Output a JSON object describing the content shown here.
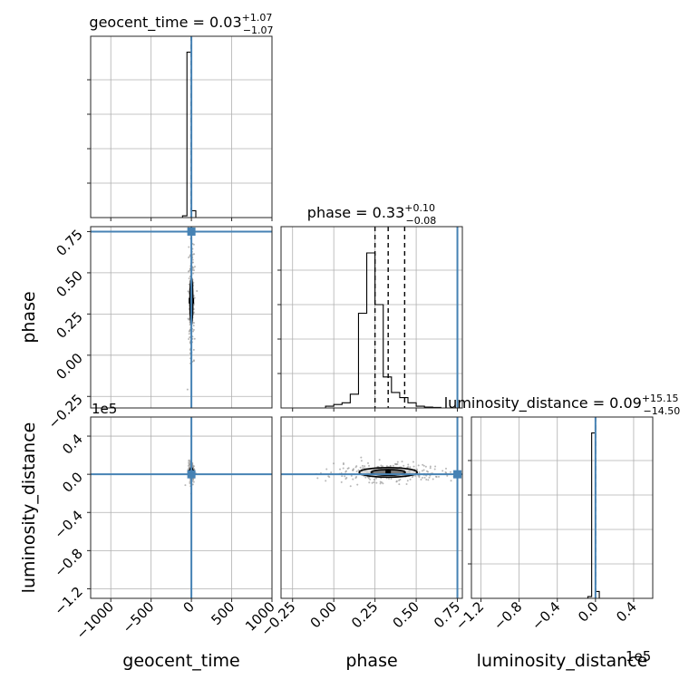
{
  "chart_data": {
    "type": "corner",
    "grid": true,
    "truth_color": "#4682b4",
    "parameters": [
      {
        "key": "geocent_time",
        "label": "geocent_time",
        "range": [
          -1250,
          1000
        ],
        "ticks": [
          -1000,
          -500,
          0,
          500,
          1000
        ],
        "truth": 0,
        "title_median": "0.03",
        "title_plus": "+1.07",
        "title_minus": "−1.07",
        "quantiles": [
          -1.04,
          0.03,
          1.1
        ]
      },
      {
        "key": "phase",
        "label": "phase",
        "range": [
          -0.32,
          0.78
        ],
        "ticks": [
          -0.25,
          0.0,
          0.25,
          0.5,
          0.75
        ],
        "truth": 0.75,
        "title_median": "0.33",
        "title_plus": "+0.10",
        "title_minus": "−0.08",
        "quantiles": [
          0.25,
          0.33,
          0.43
        ]
      },
      {
        "key": "luminosity_distance",
        "label": "luminosity_distance",
        "range": [
          -130000,
          60000
        ],
        "ticks": [
          -120000,
          -80000,
          -40000,
          0,
          40000
        ],
        "truth": 0,
        "title_median": "0.09",
        "title_plus": "+15.15",
        "title_minus": "−14.50",
        "quantiles": [
          -14.41,
          0.09,
          15.24
        ],
        "offset_label": "1e5"
      }
    ],
    "tick_labels": {
      "geocent_time": [
        "−1000",
        "−500",
        "0",
        "500",
        "1000"
      ],
      "phase": [
        "−0.25",
        "0.00",
        "0.25",
        "0.50",
        "0.75"
      ],
      "luminosity_distance": [
        "−1.2",
        "−0.8",
        "−0.4",
        "0.0",
        "0.4"
      ]
    },
    "marginals": {
      "geocent_time": {
        "bin_edges": [
          -110,
          -55,
          0,
          55,
          110
        ],
        "heights": [
          0.01,
          0.96,
          0.04,
          0.0
        ]
      },
      "phase": {
        "bin_edges": [
          -0.05,
          0.0,
          0.05,
          0.1,
          0.15,
          0.2,
          0.25,
          0.3,
          0.35,
          0.4,
          0.45,
          0.5,
          0.55,
          0.6,
          0.65,
          0.7
        ],
        "heights": [
          0.01,
          0.02,
          0.03,
          0.08,
          0.55,
          0.9,
          0.6,
          0.18,
          0.09,
          0.06,
          0.03,
          0.01,
          0.005,
          0.003,
          0.0
        ]
      },
      "luminosity_distance": {
        "bin_edges": [
          -8000,
          -4000,
          0,
          4000,
          8000
        ],
        "heights": [
          0.01,
          0.96,
          0.04,
          0.0
        ]
      }
    },
    "pairs": [
      {
        "x": "geocent_time",
        "y": "phase",
        "center": [
          0,
          0.33
        ],
        "spread": [
          8,
          0.07
        ]
      },
      {
        "x": "geocent_time",
        "y": "luminosity_distance",
        "center": [
          0,
          2000
        ],
        "spread": [
          8,
          2500
        ]
      },
      {
        "x": "phase",
        "y": "luminosity_distance",
        "center": [
          0.33,
          2000
        ],
        "spread": [
          0.08,
          2500
        ]
      }
    ]
  }
}
